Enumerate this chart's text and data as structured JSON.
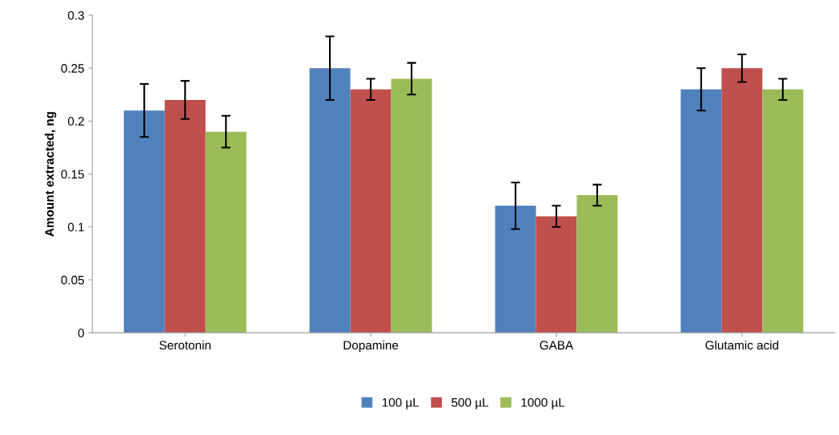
{
  "chart_data": {
    "type": "bar",
    "ylabel": "Amount extracted, ng",
    "categories": [
      "Serotonin",
      "Dopamine",
      "GABA",
      "Glutamic acid"
    ],
    "series": [
      {
        "name": "100 µL",
        "color": "#4f81bd",
        "values": [
          0.21,
          0.25,
          0.12,
          0.23
        ],
        "errors": [
          0.025,
          0.03,
          0.022,
          0.02
        ]
      },
      {
        "name": "500 µL",
        "color": "#c0504d",
        "values": [
          0.22,
          0.23,
          0.11,
          0.25
        ],
        "errors": [
          0.018,
          0.01,
          0.01,
          0.013
        ]
      },
      {
        "name": "1000 µL",
        "color": "#9bbb59",
        "values": [
          0.19,
          0.24,
          0.13,
          0.23
        ],
        "errors": [
          0.015,
          0.015,
          0.01,
          0.01
        ]
      }
    ],
    "ylim": [
      0,
      0.3
    ],
    "yticks": [
      {
        "value": 0,
        "label": "0"
      },
      0.05,
      0.1,
      0.15,
      0.2,
      0.25,
      0.3
    ],
    "grid": false,
    "legend": "bottom"
  }
}
